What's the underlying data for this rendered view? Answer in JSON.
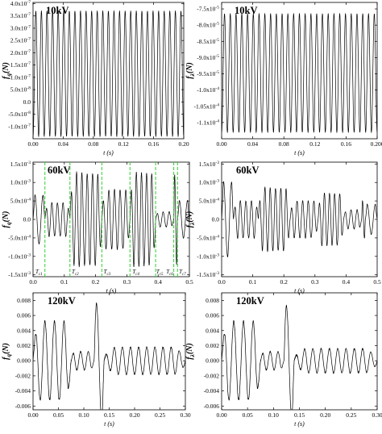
{
  "figure": {
    "background": "#ffffff",
    "line_color": "#000000",
    "marker_color": "#2fd12f"
  },
  "chart_data": [
    {
      "type": "line",
      "panel": "top-left",
      "label": "10kV",
      "xlabel": "t (s)",
      "ylabel": "fq(N)",
      "xlim": [
        0,
        0.2
      ],
      "ylim": [
        -1.5e-07,
        4.05e-07
      ],
      "xticks": [
        "0.00",
        "0.04",
        "0.08",
        "0.12",
        "0.16",
        "0.20"
      ],
      "yticks": [
        {
          "v": 4e-07,
          "label": "4.0x10-7"
        },
        {
          "v": 3.5e-07,
          "label": "3.5x10-7"
        },
        {
          "v": 3e-07,
          "label": "3.0x10-7"
        },
        {
          "v": 2.5e-07,
          "label": "2.5x10-7"
        },
        {
          "v": 2e-07,
          "label": "2.0x10-7"
        },
        {
          "v": 1.5e-07,
          "label": "1.5x10-7"
        },
        {
          "v": 1e-07,
          "label": "1.0x10-7"
        },
        {
          "v": 5e-08,
          "label": "5.0x10-8"
        },
        {
          "v": 0,
          "label": "0.0"
        },
        {
          "v": -5e-08,
          "label": "-5.0x10-8"
        },
        {
          "v": -1e-07,
          "label": "-1.0x10-7"
        }
      ],
      "signal": {
        "kind": "periodic",
        "cycles": 27,
        "min": -1.4e-07,
        "max": 3.7e-07
      }
    },
    {
      "type": "line",
      "panel": "top-right",
      "label": "10kV",
      "xlabel": "t (s)",
      "ylabel": "fλ(N)",
      "xlim": [
        0,
        0.2
      ],
      "ylim": [
        -0.000115,
        -7.3e-05
      ],
      "xticks": [
        "0.00",
        "0.04",
        "0.08",
        "0.12",
        "0.16",
        "0.200"
      ],
      "yticks": [
        {
          "v": -7.5e-05,
          "label": "-7.5x10-5"
        },
        {
          "v": -8e-05,
          "label": "-8.0x10-5"
        },
        {
          "v": -8.5e-05,
          "label": "-8.5x10-5"
        },
        {
          "v": -9e-05,
          "label": "-9.0x10-5"
        },
        {
          "v": -9.5e-05,
          "label": "-9.5x10-5"
        },
        {
          "v": -0.0001,
          "label": "-1.0x10-4"
        },
        {
          "v": -0.000105,
          "label": "-1.05x10-4"
        },
        {
          "v": -0.00011,
          "label": "-1.1x10-4"
        }
      ],
      "signal": {
        "kind": "periodic",
        "cycles": 27,
        "min": -0.000113,
        "max": -7.65e-05
      }
    },
    {
      "type": "line",
      "panel": "middle-left",
      "label": "60kV",
      "xlabel": "t (s)",
      "ylabel": "fq(N)",
      "xlim": [
        0,
        0.5
      ],
      "ylim": [
        -0.00155,
        0.00155
      ],
      "xticks": [
        "0.0",
        "0.1",
        "0.2",
        "0.3",
        "0.4",
        "0.5"
      ],
      "yticks": [
        {
          "v": 0.0015,
          "label": "1.5x10-3"
        },
        {
          "v": 0.001,
          "label": "1.0x10-3"
        },
        {
          "v": 0.0005,
          "label": "5.0x10-4"
        },
        {
          "v": 0,
          "label": "0.0"
        },
        {
          "v": -0.0005,
          "label": "-5.0x10-4"
        },
        {
          "v": -0.001,
          "label": "-1.0x10-3"
        },
        {
          "v": -0.0015,
          "label": "-1.5x10-3"
        }
      ],
      "segments": [
        {
          "x0": 0.0,
          "x1": 0.038,
          "amp": 0.00065,
          "cycles": 1.5
        },
        {
          "x0": 0.038,
          "x1": 0.118,
          "amp": 0.00045,
          "cycles": 4.5
        },
        {
          "x0": 0.118,
          "x1": 0.22,
          "amp": 0.00125,
          "cycles": 6
        },
        {
          "x0": 0.22,
          "x1": 0.31,
          "amp": 0.0008,
          "cycles": 5
        },
        {
          "x0": 0.31,
          "x1": 0.392,
          "amp": 0.00125,
          "cycles": 5
        },
        {
          "x0": 0.392,
          "x1": 0.45,
          "amp": 0.0002,
          "cycles": 3
        },
        {
          "x0": 0.45,
          "x1": 0.462,
          "amp": 0.0012,
          "cycles": 1
        },
        {
          "x0": 0.462,
          "x1": 0.5,
          "amp": 0.0005,
          "cycles": 1.5
        }
      ],
      "markers": [
        0.038,
        0.118,
        0.22,
        0.31,
        0.392,
        0.45,
        0.462
      ],
      "marker_labels": [
        {
          "main": "T",
          "sub": "c1",
          "x": 0.019
        },
        {
          "main": "T",
          "sub": "c2",
          "x": 0.135
        },
        {
          "main": "T",
          "sub": "c3",
          "x": 0.237
        },
        {
          "main": "T",
          "sub": "c4",
          "x": 0.329
        },
        {
          "main": "T",
          "sub": "c5",
          "x": 0.405
        },
        {
          "main": "T",
          "sub": "c6",
          "x": 0.437
        },
        {
          "main": "T",
          "sub": "c7",
          "x": 0.478
        }
      ]
    },
    {
      "type": "line",
      "panel": "middle-right",
      "label": "60kV",
      "xlabel": "t (s)",
      "ylabel": "fλ(N)",
      "xlim": [
        0,
        0.5
      ],
      "ylim": [
        -0.00155,
        0.00155
      ],
      "xticks": [
        "0.0",
        "0.1",
        "0.2",
        "0.3",
        "0.4",
        "0.5"
      ],
      "yticks": [
        {
          "v": 0.0015,
          "label": "1.5x10-3"
        },
        {
          "v": 0.001,
          "label": "1.0x10-3"
        },
        {
          "v": 0.0005,
          "label": "5.0x10-4"
        },
        {
          "v": 0,
          "label": "0.0"
        },
        {
          "v": -0.0005,
          "label": "-5.0x10-4"
        },
        {
          "v": -0.001,
          "label": "-1.0x10-3"
        },
        {
          "v": -0.0015,
          "label": "-1.5x10-3"
        }
      ],
      "segments": [
        {
          "x0": 0.0,
          "x1": 0.038,
          "amp": 0.001,
          "cycles": 1.5
        },
        {
          "x0": 0.038,
          "x1": 0.118,
          "amp": 0.0005,
          "cycles": 4.5
        },
        {
          "x0": 0.118,
          "x1": 0.22,
          "amp": 0.00085,
          "cycles": 6
        },
        {
          "x0": 0.22,
          "x1": 0.31,
          "amp": 0.0005,
          "cycles": 5
        },
        {
          "x0": 0.31,
          "x1": 0.392,
          "amp": 0.0007,
          "cycles": 5
        },
        {
          "x0": 0.392,
          "x1": 0.45,
          "amp": 0.00025,
          "cycles": 3
        },
        {
          "x0": 0.45,
          "x1": 0.462,
          "amp": 0.0005,
          "cycles": 1
        },
        {
          "x0": 0.462,
          "x1": 0.5,
          "amp": 0.0004,
          "cycles": 1.5
        }
      ]
    },
    {
      "type": "line",
      "panel": "bottom-left",
      "label": "120kV",
      "xlabel": "t (s)",
      "ylabel": "fq(N)",
      "xlim": [
        0,
        0.3
      ],
      "ylim": [
        -0.0065,
        0.009
      ],
      "xticks": [
        "0.00",
        "0.05",
        "0.10",
        "0.15",
        "0.20",
        "0.25",
        "0.30"
      ],
      "yticks": [
        {
          "v": 0.008,
          "label": "0.008"
        },
        {
          "v": 0.006,
          "label": "0.006"
        },
        {
          "v": 0.004,
          "label": "0.004"
        },
        {
          "v": 0.002,
          "label": "0.002"
        },
        {
          "v": 0.0,
          "label": "0.000"
        },
        {
          "v": -0.002,
          "label": "-0.002"
        },
        {
          "v": -0.004,
          "label": "-0.004"
        },
        {
          "v": -0.006,
          "label": "-0.006"
        }
      ],
      "segments": [
        {
          "x0": 0.0,
          "x1": 0.075,
          "amp": 0.0052,
          "cycles": 4
        },
        {
          "x0": 0.075,
          "x1": 0.12,
          "amp": 0.0012,
          "cycles": 3
        },
        {
          "x0": 0.12,
          "x1": 0.14,
          "amp": 0.0075,
          "cycles": 1
        },
        {
          "x0": 0.14,
          "x1": 0.3,
          "amp": 0.0018,
          "cycles": 10
        }
      ]
    },
    {
      "type": "line",
      "panel": "bottom-right",
      "label": "120kV",
      "xlabel": "t (s)",
      "ylabel": "fλ(N)",
      "xlim": [
        0,
        0.3
      ],
      "ylim": [
        -0.0065,
        0.009
      ],
      "xticks": [
        "0.00",
        "0.05",
        "0.10",
        "0.15",
        "0.20",
        "0.25",
        "0.30"
      ],
      "yticks": [
        {
          "v": 0.008,
          "label": "0.008"
        },
        {
          "v": 0.006,
          "label": "0.006"
        },
        {
          "v": 0.004,
          "label": "0.004"
        },
        {
          "v": 0.002,
          "label": "0.002"
        },
        {
          "v": 0.0,
          "label": "0.000"
        },
        {
          "v": -0.002,
          "label": "-0.002"
        },
        {
          "v": -0.004,
          "label": "-0.004"
        },
        {
          "v": -0.006,
          "label": "-0.006"
        }
      ],
      "segments": [
        {
          "x0": 0.0,
          "x1": 0.075,
          "amp": 0.0052,
          "cycles": 4
        },
        {
          "x0": 0.075,
          "x1": 0.12,
          "amp": 0.0012,
          "cycles": 3
        },
        {
          "x0": 0.12,
          "x1": 0.14,
          "amp": 0.0072,
          "cycles": 1
        },
        {
          "x0": 0.14,
          "x1": 0.3,
          "amp": 0.0016,
          "cycles": 10
        }
      ]
    }
  ]
}
